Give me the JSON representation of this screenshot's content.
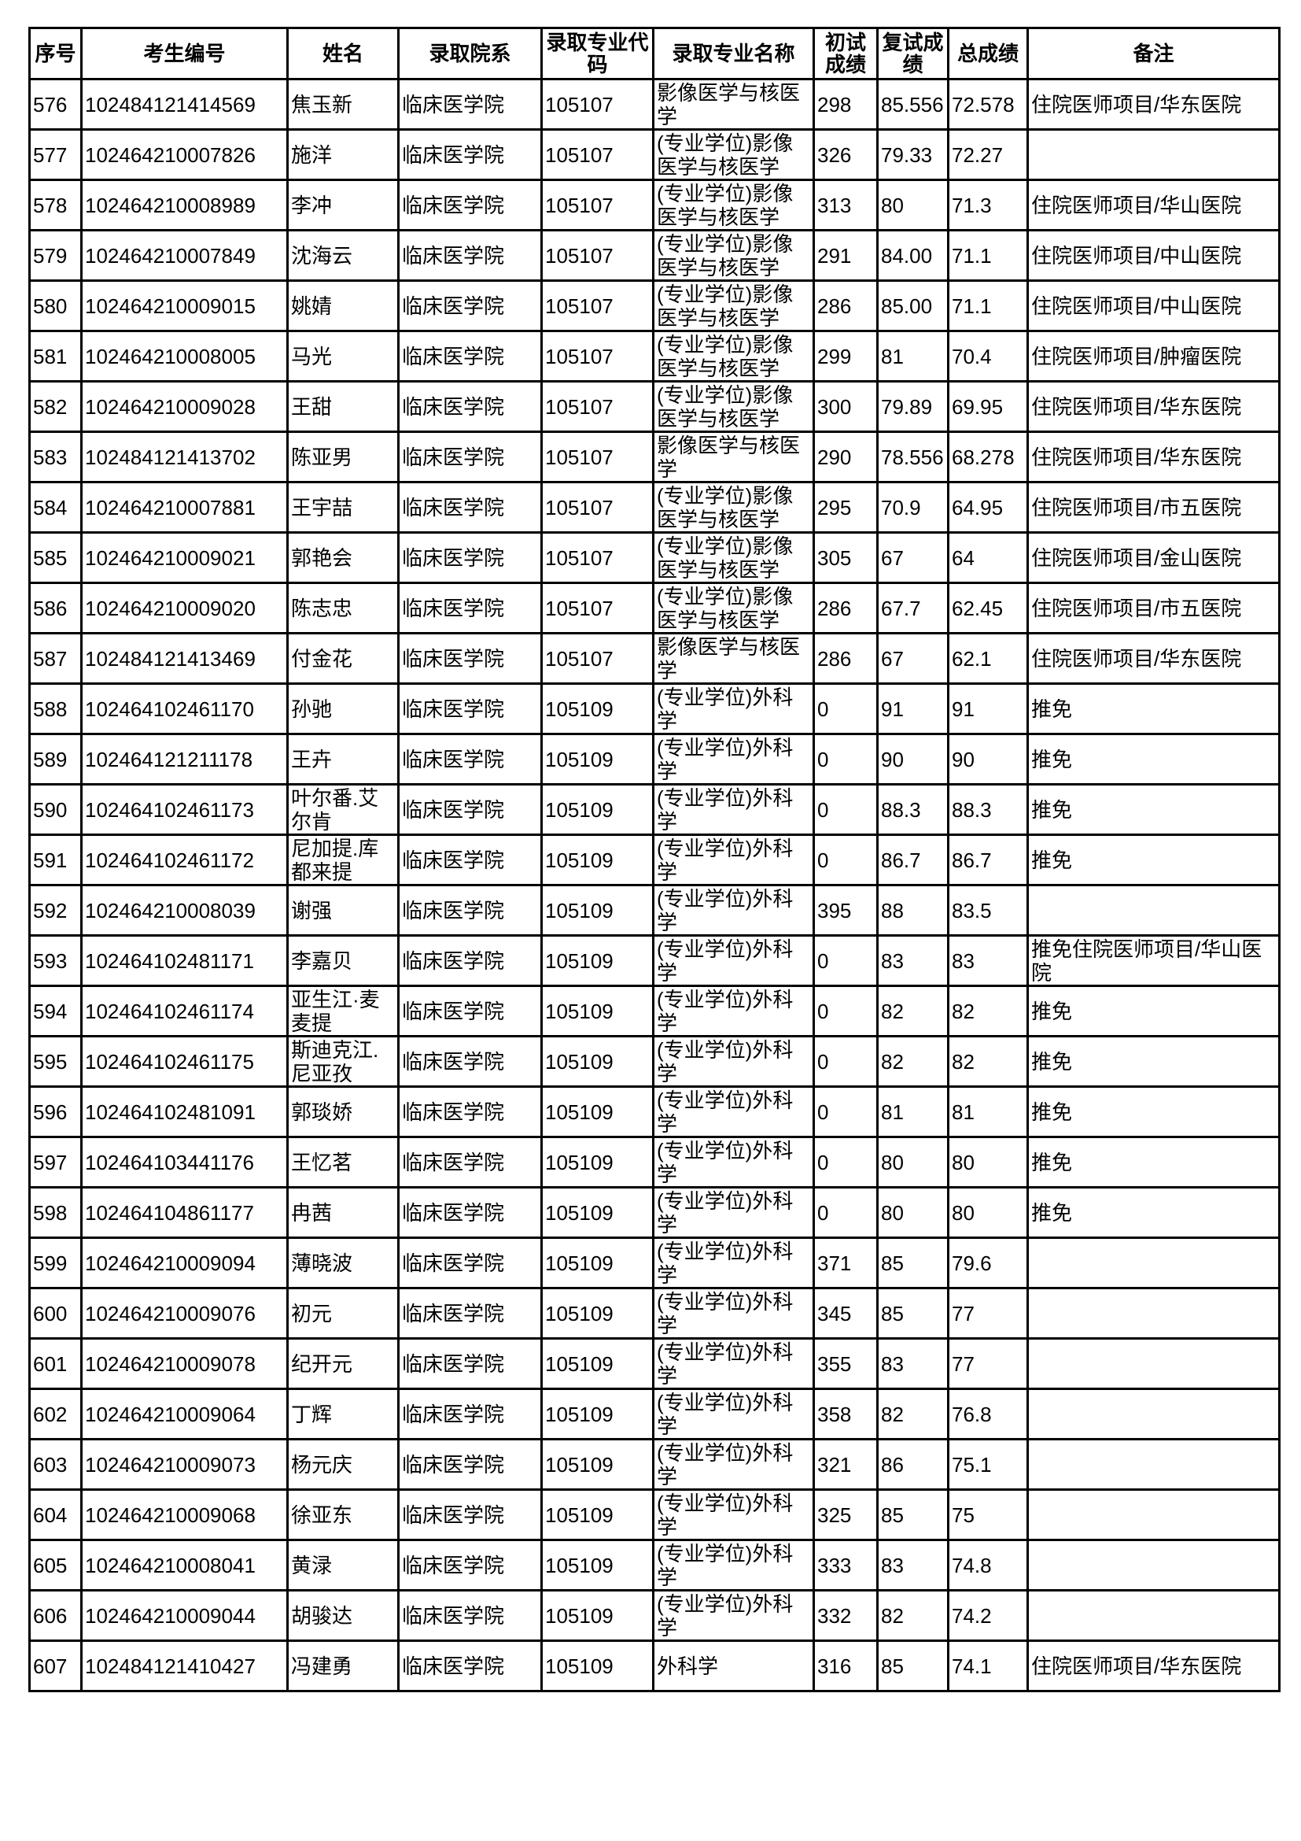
{
  "headers": [
    "序号",
    "考生编号",
    "姓名",
    "录取院系",
    "录取专业代码",
    "录取专业名称",
    "初试成绩",
    "复试成绩",
    "总成绩",
    "备注"
  ],
  "rows": [
    [
      "576",
      "102484121414569",
      "焦玉新",
      "临床医学院",
      "105107",
      "影像医学与核医学",
      "298",
      "85.556",
      "72.578",
      "住院医师项目/华东医院"
    ],
    [
      "577",
      "102464210007826",
      "施洋",
      "临床医学院",
      "105107",
      "(专业学位)影像医学与核医学",
      "326",
      "79.33",
      "72.27",
      ""
    ],
    [
      "578",
      "102464210008989",
      "李冲",
      "临床医学院",
      "105107",
      "(专业学位)影像医学与核医学",
      "313",
      "80",
      "71.3",
      "住院医师项目/华山医院"
    ],
    [
      "579",
      "102464210007849",
      "沈海云",
      "临床医学院",
      "105107",
      "(专业学位)影像医学与核医学",
      "291",
      "84.00",
      "71.1",
      "住院医师项目/中山医院"
    ],
    [
      "580",
      "102464210009015",
      "姚婧",
      "临床医学院",
      "105107",
      "(专业学位)影像医学与核医学",
      "286",
      "85.00",
      "71.1",
      "住院医师项目/中山医院"
    ],
    [
      "581",
      "102464210008005",
      "马光",
      "临床医学院",
      "105107",
      "(专业学位)影像医学与核医学",
      "299",
      "81",
      "70.4",
      "住院医师项目/肿瘤医院"
    ],
    [
      "582",
      "102464210009028",
      "王甜",
      "临床医学院",
      "105107",
      "(专业学位)影像医学与核医学",
      "300",
      "79.89",
      "69.95",
      "住院医师项目/华东医院"
    ],
    [
      "583",
      "102484121413702",
      "陈亚男",
      "临床医学院",
      "105107",
      "影像医学与核医学",
      "290",
      "78.556",
      "68.278",
      "住院医师项目/华东医院"
    ],
    [
      "584",
      "102464210007881",
      "王宇喆",
      "临床医学院",
      "105107",
      "(专业学位)影像医学与核医学",
      "295",
      "70.9",
      "64.95",
      "住院医师项目/市五医院"
    ],
    [
      "585",
      "102464210009021",
      "郭艳会",
      "临床医学院",
      "105107",
      "(专业学位)影像医学与核医学",
      "305",
      "67",
      "64",
      "住院医师项目/金山医院"
    ],
    [
      "586",
      "102464210009020",
      "陈志忠",
      "临床医学院",
      "105107",
      "(专业学位)影像医学与核医学",
      "286",
      "67.7",
      "62.45",
      "住院医师项目/市五医院"
    ],
    [
      "587",
      "102484121413469",
      "付金花",
      "临床医学院",
      "105107",
      "影像医学与核医学",
      "286",
      "67",
      "62.1",
      "住院医师项目/华东医院"
    ],
    [
      "588",
      "102464102461170",
      "孙驰",
      "临床医学院",
      "105109",
      "(专业学位)外科学",
      "0",
      "91",
      "91",
      "推免"
    ],
    [
      "589",
      "102464121211178",
      "王卉",
      "临床医学院",
      "105109",
      "(专业学位)外科学",
      "0",
      "90",
      "90",
      "推免"
    ],
    [
      "590",
      "102464102461173",
      "叶尔番.艾尔肯",
      "临床医学院",
      "105109",
      "(专业学位)外科学",
      "0",
      "88.3",
      "88.3",
      "推免"
    ],
    [
      "591",
      "102464102461172",
      "尼加提.库都来提",
      "临床医学院",
      "105109",
      "(专业学位)外科学",
      "0",
      "86.7",
      "86.7",
      "推免"
    ],
    [
      "592",
      "102464210008039",
      "谢强",
      "临床医学院",
      "105109",
      "(专业学位)外科学",
      "395",
      "88",
      "83.5",
      ""
    ],
    [
      "593",
      "102464102481171",
      "李嘉贝",
      "临床医学院",
      "105109",
      "(专业学位)外科学",
      "0",
      "83",
      "83",
      "推免住院医师项目/华山医院"
    ],
    [
      "594",
      "102464102461174",
      "亚生江·麦麦提",
      "临床医学院",
      "105109",
      "(专业学位)外科学",
      "0",
      "82",
      "82",
      "推免"
    ],
    [
      "595",
      "102464102461175",
      "斯迪克江.尼亚孜",
      "临床医学院",
      "105109",
      "(专业学位)外科学",
      "0",
      "82",
      "82",
      "推免"
    ],
    [
      "596",
      "102464102481091",
      "郭琰娇",
      "临床医学院",
      "105109",
      "(专业学位)外科学",
      "0",
      "81",
      "81",
      "推免"
    ],
    [
      "597",
      "102464103441176",
      "王忆茗",
      "临床医学院",
      "105109",
      "(专业学位)外科学",
      "0",
      "80",
      "80",
      "推免"
    ],
    [
      "598",
      "102464104861177",
      "冉茜",
      "临床医学院",
      "105109",
      "(专业学位)外科学",
      "0",
      "80",
      "80",
      "推免"
    ],
    [
      "599",
      "102464210009094",
      "薄晓波",
      "临床医学院",
      "105109",
      "(专业学位)外科学",
      "371",
      "85",
      "79.6",
      ""
    ],
    [
      "600",
      "102464210009076",
      "初元",
      "临床医学院",
      "105109",
      "(专业学位)外科学",
      "345",
      "85",
      "77",
      ""
    ],
    [
      "601",
      "102464210009078",
      "纪开元",
      "临床医学院",
      "105109",
      "(专业学位)外科学",
      "355",
      "83",
      "77",
      ""
    ],
    [
      "602",
      "102464210009064",
      "丁辉",
      "临床医学院",
      "105109",
      "(专业学位)外科学",
      "358",
      "82",
      "76.8",
      ""
    ],
    [
      "603",
      "102464210009073",
      "杨元庆",
      "临床医学院",
      "105109",
      "(专业学位)外科学",
      "321",
      "86",
      "75.1",
      ""
    ],
    [
      "604",
      "102464210009068",
      "徐亚东",
      "临床医学院",
      "105109",
      "(专业学位)外科学",
      "325",
      "85",
      "75",
      ""
    ],
    [
      "605",
      "102464210008041",
      "黄渌",
      "临床医学院",
      "105109",
      "(专业学位)外科学",
      "333",
      "83",
      "74.8",
      ""
    ],
    [
      "606",
      "102464210009044",
      "胡骏达",
      "临床医学院",
      "105109",
      "(专业学位)外科学",
      "332",
      "82",
      "74.2",
      ""
    ],
    [
      "607",
      "102484121410427",
      "冯建勇",
      "临床医学院",
      "105109",
      "外科学",
      "316",
      "85",
      "74.1",
      "住院医师项目/华东医院"
    ]
  ]
}
